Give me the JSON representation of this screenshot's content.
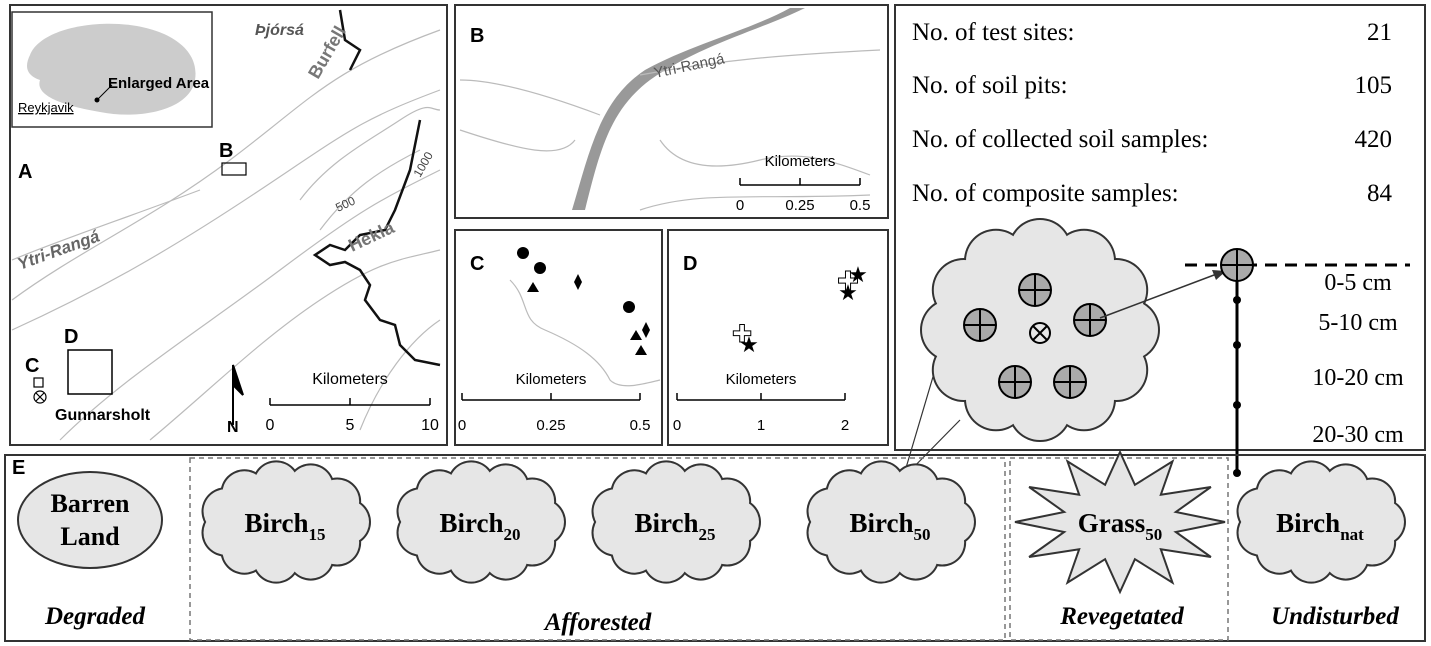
{
  "panel_a": {
    "label": "A",
    "rivers": [
      "Þjórsá",
      "Ytri-Rangá"
    ],
    "mountains": [
      "Burfell",
      "Hekla"
    ],
    "inset_label": "Enlarged Area",
    "city": "Reykjavik",
    "contours": [
      "500",
      "1000"
    ],
    "markers": [
      "B",
      "C",
      "D"
    ],
    "site": "Gunnarsholt",
    "north": "N",
    "scale": {
      "title": "Kilometers",
      "ticks": [
        "0",
        "5",
        "10"
      ]
    }
  },
  "panel_b": {
    "label": "B",
    "river": "Ytri-Rangá",
    "scale": {
      "title": "Kilometers",
      "ticks": [
        "0",
        "0.25",
        "0.5"
      ]
    }
  },
  "panel_c": {
    "label": "C",
    "scale": {
      "title": "Kilometers",
      "ticks": [
        "0",
        "0.25",
        "0.5"
      ]
    }
  },
  "panel_d": {
    "label": "D",
    "scale": {
      "title": "Kilometers",
      "ticks": [
        "0",
        "1",
        "2"
      ]
    }
  },
  "stats": [
    {
      "label": "No. of test sites:",
      "value": "21"
    },
    {
      "label": "No. of soil pits:",
      "value": "105"
    },
    {
      "label": "No. of collected soil samples:",
      "value": "420"
    },
    {
      "label": "No. of composite samples:",
      "value": "84"
    }
  ],
  "depths": [
    "0-5 cm",
    "5-10 cm",
    "10-20 cm",
    "20-30 cm"
  ],
  "panel_e": {
    "label": "E",
    "barren": [
      "Barren",
      "Land"
    ],
    "sites": [
      {
        "name": "Birch",
        "sub": "15"
      },
      {
        "name": "Birch",
        "sub": "20"
      },
      {
        "name": "Birch",
        "sub": "25"
      },
      {
        "name": "Birch",
        "sub": "50"
      },
      {
        "name": "Grass",
        "sub": "50"
      },
      {
        "name": "Birch",
        "sub": "nat"
      }
    ],
    "groups": [
      "Degraded",
      "Afforested",
      "Revegetated",
      "Undisturbed"
    ]
  }
}
